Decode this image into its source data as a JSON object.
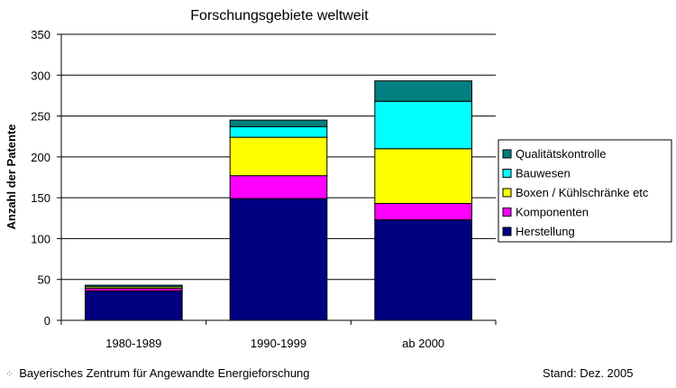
{
  "chart_data": {
    "type": "bar",
    "stacked": true,
    "title": "Forschungsgebiete weltweit",
    "xlabel": "",
    "ylabel": "Anzahl der Patente",
    "categories": [
      "1980-1989",
      "1990-1999",
      "ab 2000"
    ],
    "ylim": [
      0,
      350
    ],
    "yticks": [
      0,
      50,
      100,
      150,
      200,
      250,
      300,
      350
    ],
    "grid": true,
    "legend_position": "right",
    "series": [
      {
        "name": "Herstellung",
        "color": "#000080",
        "values": [
          36,
          149,
          123
        ]
      },
      {
        "name": "Komponenten",
        "color": "#ff00ff",
        "values": [
          3,
          28,
          20
        ]
      },
      {
        "name": "Boxen / Kühlschränke etc",
        "color": "#ffff00",
        "values": [
          2,
          47,
          67
        ]
      },
      {
        "name": "Bauwesen",
        "color": "#00ffff",
        "values": [
          0,
          13,
          58
        ]
      },
      {
        "name": "Qualitätskontrolle",
        "color": "#008080",
        "values": [
          2,
          8,
          25
        ]
      }
    ]
  },
  "footer": {
    "source": "Bayerisches Zentrum für Angewandte Energieforschung",
    "date": "Stand: Dez. 2005"
  }
}
